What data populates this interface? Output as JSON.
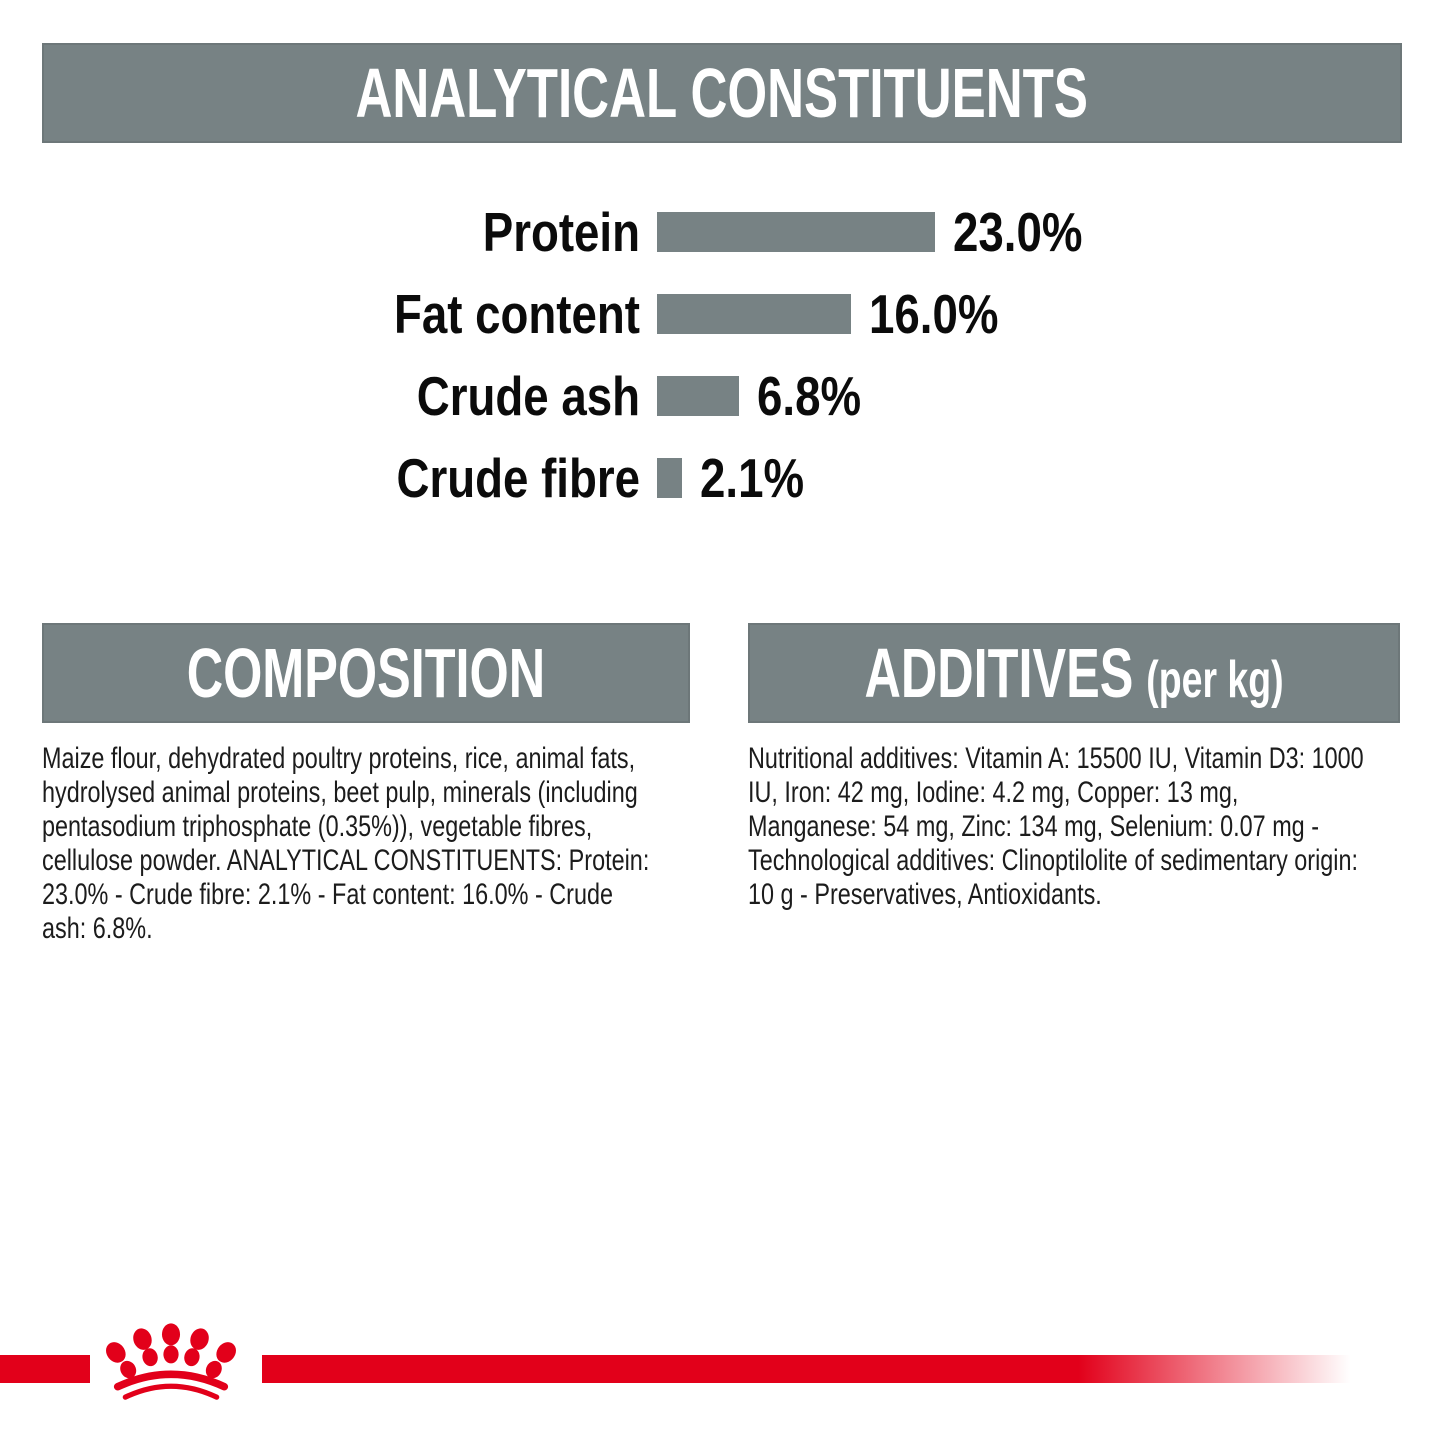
{
  "colors": {
    "brand_red": "#e2001a",
    "panel_gray": "#778284",
    "text_black": "#0b0b0b"
  },
  "sections": {
    "analytical": {
      "title": "ANALYTICAL CONSTITUENTS"
    },
    "composition": {
      "title": "COMPOSITION",
      "body": "Maize flour, dehydrated poultry proteins, rice, animal fats, hydrolysed animal proteins, beet pulp, minerals (including pentasodium triphosphate (0.35%)), vegetable fibres, cellulose powder. ANALYTICAL CONSTITUENTS: Protein: 23.0% - Crude fibre: 2.1% - Fat content: 16.0% - Crude ash: 6.8%."
    },
    "additives": {
      "title": "ADDITIVES",
      "title_suffix": "(per kg)",
      "body": "Nutritional additives: Vitamin A: 15500 IU, Vitamin D3: 1000 IU, Iron: 42 mg, Iodine: 4.2 mg, Copper: 13 mg, Manganese: 54 mg, Zinc: 134 mg, Selenium: 0.07 mg - Technological additives: Clinoptilolite of sedimentary origin: 10 g - Preservatives, Antioxidants."
    }
  },
  "chart_data": {
    "type": "bar",
    "orientation": "horizontal",
    "title": "ANALYTICAL CONSTITUENTS",
    "categories": [
      "Protein",
      "Fat content",
      "Crude ash",
      "Crude fibre"
    ],
    "values": [
      23.0,
      16.0,
      6.8,
      2.1
    ],
    "value_labels": [
      "23.0%",
      "16.0%",
      "6.8%",
      "2.1%"
    ],
    "unit": "%",
    "xlim": [
      0,
      25
    ],
    "bar_color": "#778284",
    "grid": false,
    "legend": false
  },
  "logo": {
    "name": "royal-canin-crown"
  }
}
